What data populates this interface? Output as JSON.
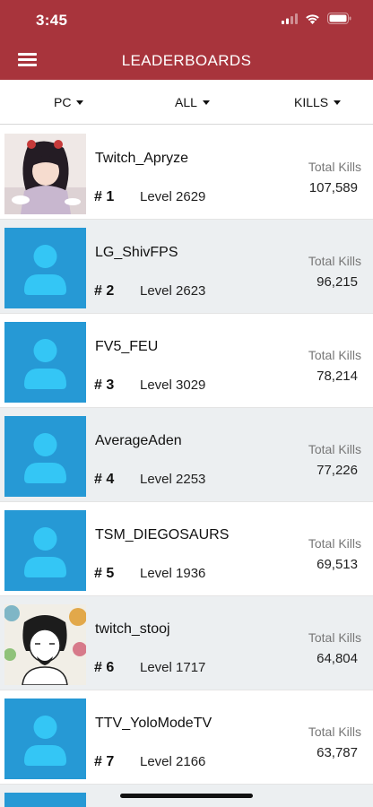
{
  "status_bar": {
    "time": "3:45",
    "icons": [
      "signal-icon",
      "wifi-icon",
      "battery-icon"
    ]
  },
  "app_bar": {
    "title": "LEADERBOARDS",
    "menu_icon": "hamburger-menu-icon"
  },
  "filters": {
    "platform": "PC",
    "mode": "ALL",
    "stat": "KILLS"
  },
  "colors": {
    "accent": "#a8343c",
    "default_avatar": "#2699d5",
    "alt_row": "#eceff1"
  },
  "players": [
    {
      "rank": "# 1",
      "name": "Twitch_Apryze",
      "level": "Level 2629",
      "kills_label": "Total Kills",
      "kills": "107,589",
      "avatar": "custom-anime-avatar"
    },
    {
      "rank": "# 2",
      "name": "LG_ShivFPS",
      "level": "Level 2623",
      "kills_label": "Total Kills",
      "kills": "96,215",
      "avatar": "default-user-avatar"
    },
    {
      "rank": "# 3",
      "name": "FV5_FEU",
      "level": "Level 3029",
      "kills_label": "Total Kills",
      "kills": "78,214",
      "avatar": "default-user-avatar"
    },
    {
      "rank": "# 4",
      "name": "AverageAden",
      "level": "Level 2253",
      "kills_label": "Total Kills",
      "kills": "77,226",
      "avatar": "default-user-avatar"
    },
    {
      "rank": "# 5",
      "name": "TSM_DIEGOSAURS",
      "level": "Level 1936",
      "kills_label": "Total Kills",
      "kills": "69,513",
      "avatar": "default-user-avatar"
    },
    {
      "rank": "# 6",
      "name": "twitch_stooj",
      "level": "Level 1717",
      "kills_label": "Total Kills",
      "kills": "64,804",
      "avatar": "custom-sketch-avatar"
    },
    {
      "rank": "# 7",
      "name": "TTV_YoloModeTV",
      "level": "Level 2166",
      "kills_label": "Total Kills",
      "kills": "63,787",
      "avatar": "default-user-avatar"
    }
  ]
}
